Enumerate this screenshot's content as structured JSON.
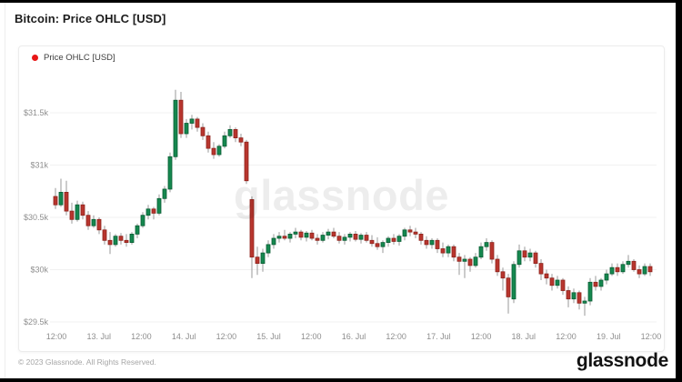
{
  "window": {
    "title": "Bitcoin: Price OHLC [USD]"
  },
  "legend": {
    "label": "Price OHLC [USD]",
    "dot_color": "#e81717"
  },
  "watermark": "glassnode",
  "footer": {
    "copyright": "© 2023 Glassnode. All Rights Reserved.",
    "brand": "glassnode"
  },
  "colors": {
    "up": "#15884f",
    "up_border": "#0a5c33",
    "down": "#b8352e",
    "down_border": "#8e231c",
    "wick": "#999999",
    "grid": "#f1f1f1",
    "axis_text": "#8e8e8e"
  },
  "chart_data": {
    "type": "candlestick",
    "title": "Bitcoin: Price OHLC [USD]",
    "series_name": "Price OHLC [USD]",
    "unit": "USD (thousands)",
    "ylim": [
      29.3,
      31.8
    ],
    "y_axis_labels": [
      "$31.5k",
      "$31k",
      "$30.5k",
      "$30k",
      "$29.5k"
    ],
    "y_tick_values": [
      31.5,
      31.0,
      30.5,
      30.0,
      29.5
    ],
    "x_axis_labels": [
      "12:00",
      "13. Jul",
      "12:00",
      "14. Jul",
      "12:00",
      "15. Jul",
      "12:00",
      "16. Jul",
      "12:00",
      "17. Jul",
      "12:00",
      "18. Jul",
      "12:00",
      "19. Jul",
      "12:00"
    ],
    "x_range": [
      "12. Jul 12:00",
      "19. Jul 12:00"
    ],
    "grid": "horizontal",
    "legend_position": "top-left",
    "ohlc": [
      [
        30.7,
        30.78,
        30.58,
        30.62
      ],
      [
        30.62,
        30.87,
        30.6,
        30.74
      ],
      [
        30.74,
        30.85,
        30.52,
        30.56
      ],
      [
        30.56,
        30.64,
        30.44,
        30.48
      ],
      [
        30.48,
        30.66,
        30.46,
        30.62
      ],
      [
        30.62,
        30.65,
        30.48,
        30.52
      ],
      [
        30.52,
        30.56,
        30.38,
        30.42
      ],
      [
        30.42,
        30.52,
        30.4,
        30.48
      ],
      [
        30.48,
        30.5,
        30.34,
        30.38
      ],
      [
        30.38,
        30.42,
        30.24,
        30.28
      ],
      [
        30.28,
        30.36,
        30.15,
        30.24
      ],
      [
        30.24,
        30.34,
        30.22,
        30.32
      ],
      [
        30.32,
        30.35,
        30.24,
        30.28
      ],
      [
        30.28,
        30.34,
        30.22,
        30.26
      ],
      [
        30.26,
        30.36,
        30.24,
        30.34
      ],
      [
        30.34,
        30.44,
        30.3,
        30.42
      ],
      [
        30.42,
        30.55,
        30.4,
        30.52
      ],
      [
        30.52,
        30.62,
        30.48,
        30.58
      ],
      [
        30.58,
        30.6,
        30.48,
        30.54
      ],
      [
        30.54,
        30.72,
        30.52,
        30.68
      ],
      [
        30.68,
        30.8,
        30.64,
        30.77
      ],
      [
        30.77,
        31.12,
        30.74,
        31.08
      ],
      [
        31.08,
        31.72,
        31.05,
        31.62
      ],
      [
        31.62,
        31.7,
        31.26,
        31.3
      ],
      [
        31.3,
        31.44,
        31.26,
        31.4
      ],
      [
        31.4,
        31.48,
        31.34,
        31.44
      ],
      [
        31.44,
        31.46,
        31.32,
        31.36
      ],
      [
        31.36,
        31.4,
        31.24,
        31.28
      ],
      [
        31.28,
        31.32,
        31.12,
        31.16
      ],
      [
        31.16,
        31.22,
        31.06,
        31.1
      ],
      [
        31.1,
        31.2,
        31.08,
        31.18
      ],
      [
        31.18,
        31.32,
        31.16,
        31.28
      ],
      [
        31.28,
        31.38,
        31.26,
        31.34
      ],
      [
        31.34,
        31.36,
        31.22,
        31.26
      ],
      [
        31.26,
        31.3,
        31.18,
        31.22
      ],
      [
        31.22,
        31.24,
        30.82,
        30.85
      ],
      [
        30.67,
        30.7,
        29.92,
        30.12
      ],
      [
        30.12,
        30.22,
        29.95,
        30.06
      ],
      [
        30.06,
        30.2,
        29.98,
        30.16
      ],
      [
        30.16,
        30.28,
        30.12,
        30.24
      ],
      [
        30.24,
        30.34,
        30.2,
        30.3
      ],
      [
        30.3,
        30.36,
        30.26,
        30.32
      ],
      [
        30.32,
        30.38,
        30.28,
        30.3
      ],
      [
        30.3,
        30.36,
        30.26,
        30.34
      ],
      [
        30.34,
        30.4,
        30.3,
        30.36
      ],
      [
        30.36,
        30.38,
        30.28,
        30.31
      ],
      [
        30.31,
        30.37,
        30.27,
        30.35
      ],
      [
        30.35,
        30.38,
        30.28,
        30.3
      ],
      [
        30.3,
        30.34,
        30.24,
        30.28
      ],
      [
        30.28,
        30.36,
        30.26,
        30.33
      ],
      [
        30.33,
        30.39,
        30.29,
        30.36
      ],
      [
        30.36,
        30.4,
        30.3,
        30.32
      ],
      [
        30.32,
        30.36,
        30.25,
        30.28
      ],
      [
        30.28,
        30.34,
        30.24,
        30.31
      ],
      [
        30.31,
        30.36,
        30.27,
        30.34
      ],
      [
        30.34,
        30.37,
        30.27,
        30.29
      ],
      [
        30.29,
        30.35,
        30.25,
        30.33
      ],
      [
        30.33,
        30.36,
        30.26,
        30.28
      ],
      [
        30.28,
        30.33,
        30.22,
        30.25
      ],
      [
        30.25,
        30.31,
        30.19,
        30.22
      ],
      [
        30.22,
        30.28,
        30.16,
        30.26
      ],
      [
        30.26,
        30.32,
        30.22,
        30.3
      ],
      [
        30.3,
        30.34,
        30.24,
        30.27
      ],
      [
        30.27,
        30.34,
        30.23,
        30.32
      ],
      [
        30.32,
        30.4,
        30.28,
        30.38
      ],
      [
        30.38,
        30.42,
        30.32,
        30.36
      ],
      [
        30.36,
        30.4,
        30.3,
        30.34
      ],
      [
        30.34,
        30.36,
        30.24,
        30.28
      ],
      [
        30.28,
        30.32,
        30.2,
        30.24
      ],
      [
        30.24,
        30.3,
        30.2,
        30.28
      ],
      [
        30.28,
        30.3,
        30.16,
        30.2
      ],
      [
        30.2,
        30.26,
        30.12,
        30.16
      ],
      [
        30.16,
        30.24,
        30.12,
        30.22
      ],
      [
        30.22,
        30.24,
        30.08,
        30.12
      ],
      [
        30.12,
        30.16,
        29.95,
        30.08
      ],
      [
        30.08,
        30.14,
        29.92,
        30.1
      ],
      [
        30.1,
        30.12,
        29.98,
        30.04
      ],
      [
        30.04,
        30.16,
        30.02,
        30.12
      ],
      [
        30.12,
        30.26,
        30.1,
        30.22
      ],
      [
        30.22,
        30.3,
        30.18,
        30.26
      ],
      [
        30.26,
        30.28,
        30.06,
        30.1
      ],
      [
        30.1,
        30.14,
        29.94,
        29.98
      ],
      [
        29.98,
        30.02,
        29.8,
        29.92
      ],
      [
        29.92,
        29.96,
        29.58,
        29.74
      ],
      [
        29.72,
        30.08,
        29.68,
        30.05
      ],
      [
        30.05,
        30.24,
        30.02,
        30.18
      ],
      [
        30.18,
        30.22,
        30.08,
        30.12
      ],
      [
        30.12,
        30.2,
        30.08,
        30.16
      ],
      [
        30.16,
        30.18,
        30.02,
        30.06
      ],
      [
        30.06,
        30.1,
        29.9,
        29.96
      ],
      [
        29.96,
        30.0,
        29.86,
        29.92
      ],
      [
        29.92,
        29.96,
        29.8,
        29.85
      ],
      [
        29.85,
        29.94,
        29.82,
        29.9
      ],
      [
        29.9,
        29.92,
        29.76,
        29.8
      ],
      [
        29.8,
        29.84,
        29.64,
        29.72
      ],
      [
        29.72,
        29.82,
        29.68,
        29.78
      ],
      [
        29.78,
        29.8,
        29.62,
        29.68
      ],
      [
        29.68,
        29.74,
        29.56,
        29.7
      ],
      [
        29.7,
        29.92,
        29.66,
        29.88
      ],
      [
        29.88,
        29.94,
        29.8,
        29.84
      ],
      [
        29.84,
        29.92,
        29.8,
        29.9
      ],
      [
        29.9,
        30.0,
        29.86,
        29.96
      ],
      [
        29.96,
        30.06,
        29.94,
        30.02
      ],
      [
        30.02,
        30.06,
        29.94,
        29.98
      ],
      [
        29.98,
        30.08,
        29.96,
        30.05
      ],
      [
        30.05,
        30.14,
        30.02,
        30.08
      ],
      [
        30.08,
        30.1,
        29.98,
        30.0
      ],
      [
        30.0,
        30.04,
        29.92,
        29.96
      ],
      [
        29.96,
        30.06,
        29.94,
        30.03
      ],
      [
        30.03,
        30.06,
        29.94,
        29.98
      ]
    ]
  }
}
